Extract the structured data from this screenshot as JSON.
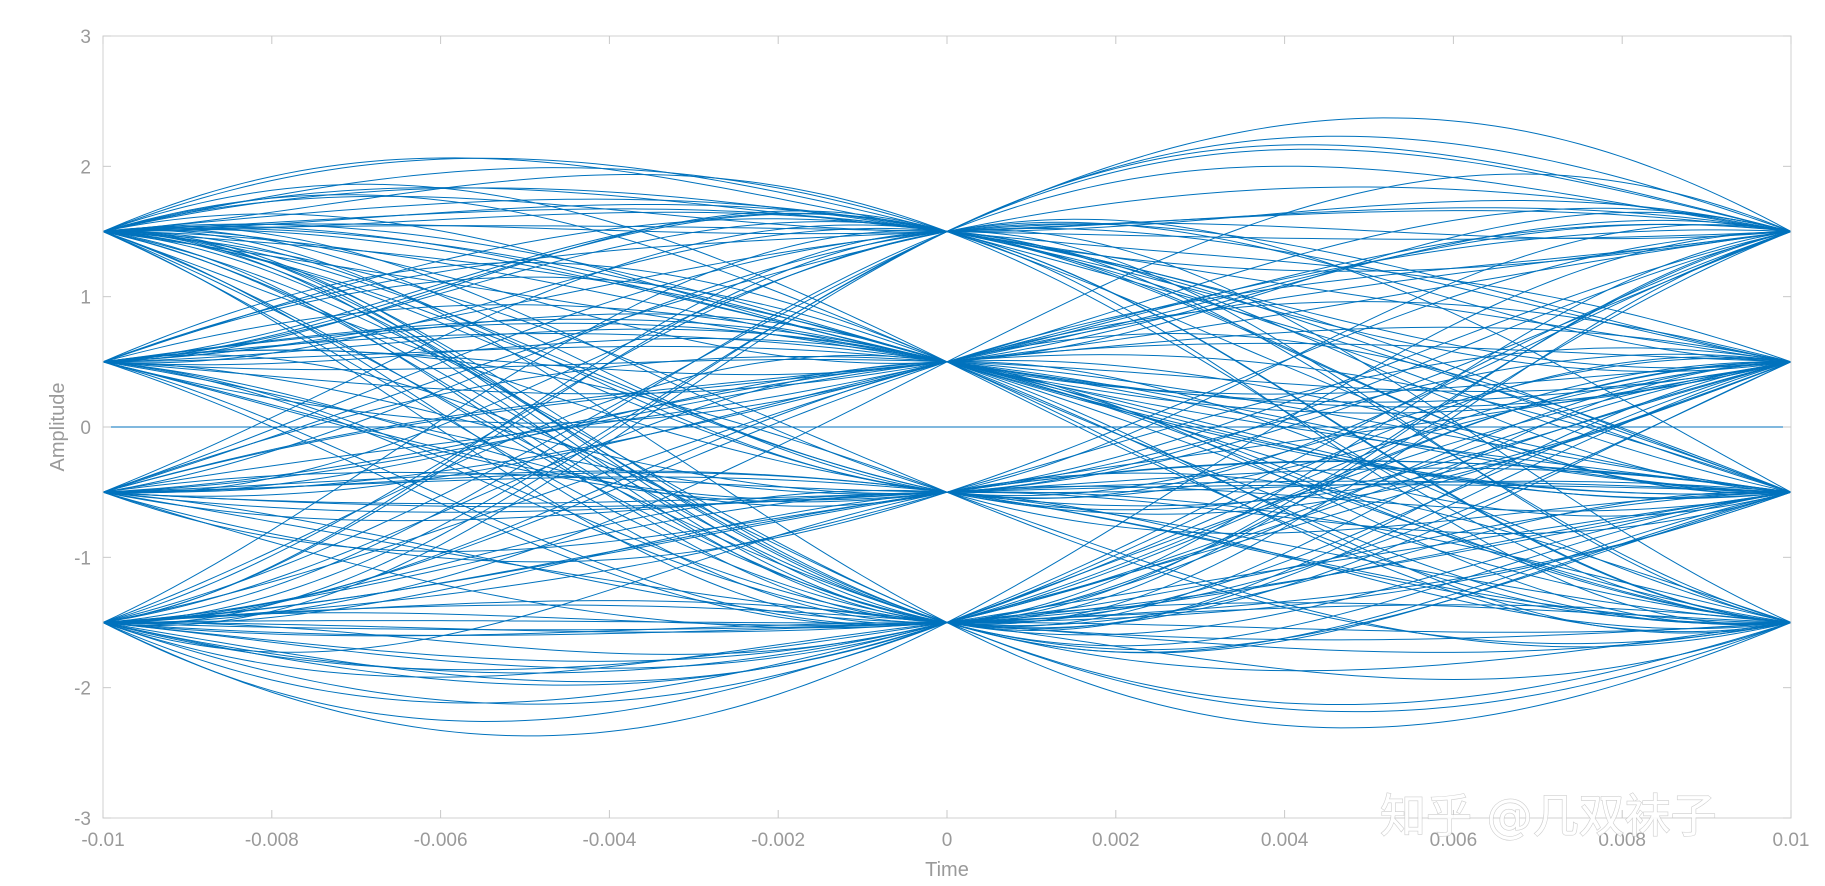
{
  "chart_data": {
    "type": "line",
    "title": "",
    "xlabel": "Time",
    "ylabel": "Amplitude",
    "xlim": [
      -0.01,
      0.01
    ],
    "ylim": [
      -3,
      3
    ],
    "x_ticks": [
      -0.01,
      -0.008,
      -0.006,
      -0.004,
      -0.002,
      0,
      0.002,
      0.004,
      0.006,
      0.008,
      0.01
    ],
    "x_tick_labels": [
      "-0.01",
      "-0.008",
      "-0.006",
      "-0.004",
      "-0.002",
      "0",
      "0.002",
      "0.004",
      "0.006",
      "0.008",
      "0.01"
    ],
    "y_ticks": [
      -3,
      -2,
      -1,
      0,
      1,
      2,
      3
    ],
    "y_tick_labels": [
      "-3",
      "-2",
      "-1",
      "0",
      "1",
      "2",
      "3"
    ],
    "grid": false,
    "line_color": "#0072BD",
    "eye_diagram": {
      "symbol_levels": [
        -1.5,
        -0.5,
        0.5,
        1.5
      ],
      "symbol_times": [
        -0.01,
        0,
        0.01
      ],
      "max_amplitude": 2.55,
      "min_amplitude": -2.55,
      "baseline": 0
    }
  },
  "watermark": "知乎 @几双袜子"
}
